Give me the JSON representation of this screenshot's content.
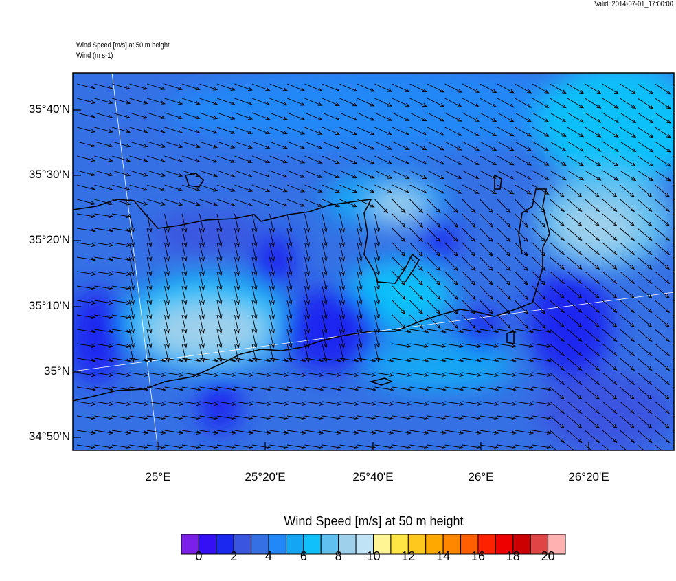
{
  "header": {
    "valid": "Valid: 2014-07-01_17:00:00",
    "subtitle1": "Wind Speed [m/s] at 50 m height",
    "subtitle2": "Wind   (m s-1)"
  },
  "chart_data": {
    "type": "heatmap",
    "title": "",
    "variable": "Wind Speed [m/s] at 50 m height",
    "vector_field": "Wind (m s-1)",
    "lat_ticks": [
      "35°40'N",
      "35°30'N",
      "35°20'N",
      "35°10'N",
      "35°N",
      "34°50'N"
    ],
    "lon_ticks": [
      "25°E",
      "25°20'E",
      "25°40'E",
      "26°E",
      "26°20'E"
    ],
    "colorbar": {
      "title": "Wind Speed [m/s] at 50 m height",
      "labels": [
        "0",
        "2",
        "4",
        "6",
        "8",
        "10",
        "12",
        "14",
        "16",
        "18",
        "20"
      ],
      "colors": [
        "#7b20e8",
        "#3510f5",
        "#1a28f0",
        "#3a55e0",
        "#3570e5",
        "#2288f8",
        "#14a6f5",
        "#10c0fa",
        "#60c0f0",
        "#9ed0ec",
        "#c0e4f5",
        "#fff595",
        "#ffe644",
        "#ffc81e",
        "#ffa900",
        "#ff8700",
        "#ff5f00",
        "#ff2200",
        "#ee0000",
        "#cc0000",
        "#e04444",
        "#ffb0b0"
      ]
    }
  }
}
